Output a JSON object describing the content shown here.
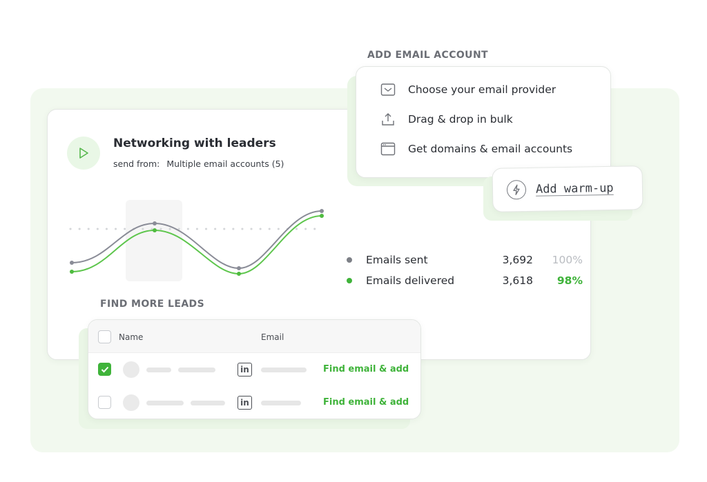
{
  "campaign": {
    "title": "Networking with leaders",
    "send_from_label": "send from:",
    "send_from_value": "Multiple email accounts (5)",
    "play_icon": "play-icon"
  },
  "stats": [
    {
      "label": "Emails sent",
      "value": "3,692",
      "percent": "100%",
      "dot_color": "#7d8087",
      "percent_color": "#b9bcc1"
    },
    {
      "label": "Emails delivered",
      "value": "3,618",
      "percent": "98%",
      "dot_color": "#3fb33a",
      "percent_color": "#3fb33a"
    }
  ],
  "add_email_account": {
    "heading": "ADD EMAIL ACCOUNT",
    "items": [
      {
        "label": "Choose your email provider",
        "icon": "envelope-icon"
      },
      {
        "label": "Drag & drop in bulk",
        "icon": "upload-icon"
      },
      {
        "label": "Get domains & email accounts",
        "icon": "browser-window-icon"
      }
    ],
    "warmup_label": "Add warm-up",
    "warmup_icon": "lightning-icon"
  },
  "leads": {
    "heading": "FIND MORE LEADS",
    "columns": {
      "name": "Name",
      "email": "Email"
    },
    "rows": [
      {
        "checked": true,
        "action": "Find email & add",
        "linkedin": "in"
      },
      {
        "checked": false,
        "action": "Find email & add",
        "linkedin": "in"
      }
    ]
  },
  "colors": {
    "accent": "#3fb33a",
    "line_sent": "#8a8c97",
    "line_delivered": "#5ec64d"
  }
}
